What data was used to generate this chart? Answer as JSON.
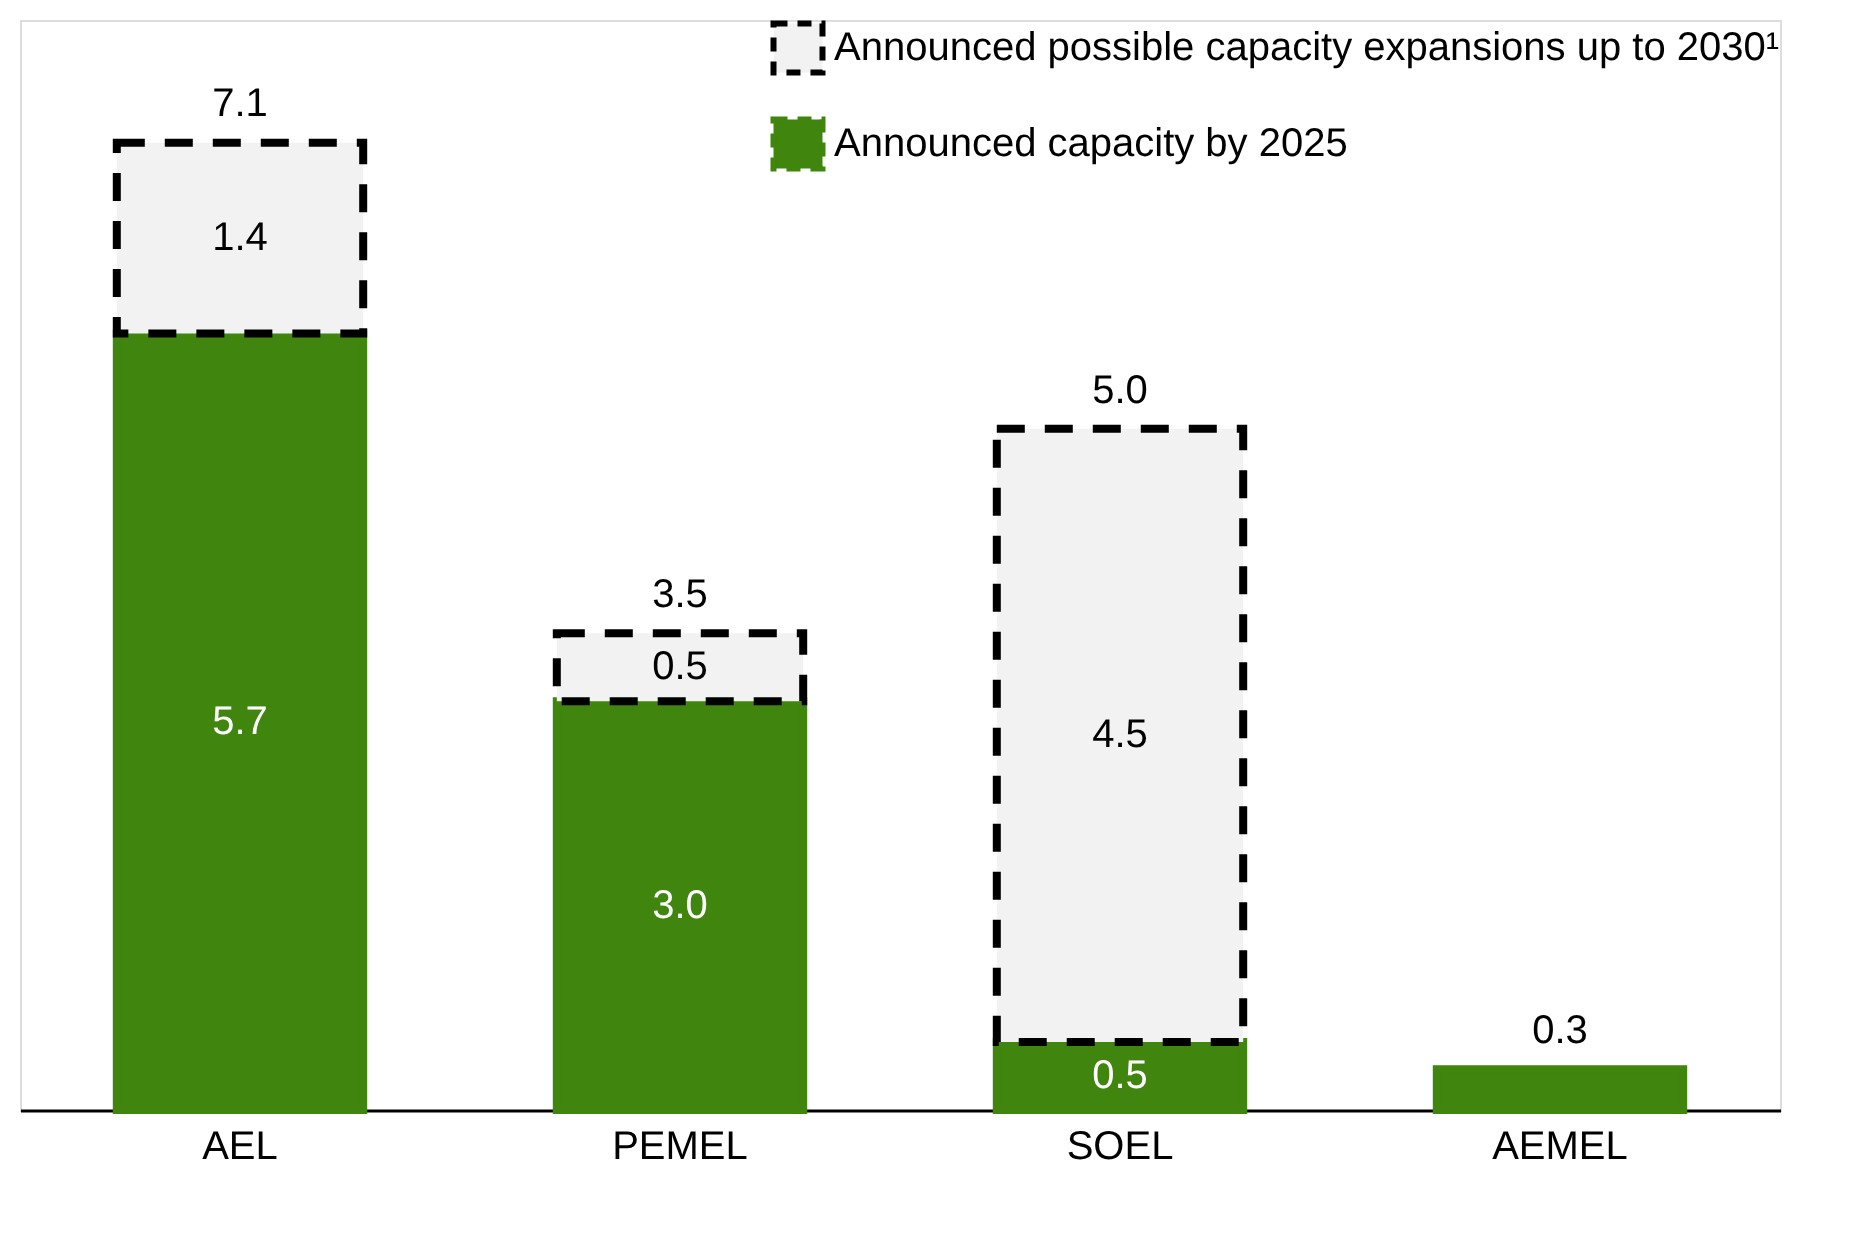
{
  "chart_data": {
    "type": "bar",
    "stacked": true,
    "categories": [
      "AEL",
      "PEMEL",
      "SOEL",
      "AEMEL"
    ],
    "series": [
      {
        "name": "Announced capacity by 2025",
        "color": "#3f850e",
        "values": [
          5.7,
          3.0,
          0.5,
          0.3
        ],
        "value_labels": [
          "5.7",
          "3.0",
          "0.5",
          "0.3"
        ]
      },
      {
        "name": "Announced possible capacity expansions up to 2030¹",
        "color": "#f2f2f2",
        "line_style": "dashed",
        "values": [
          1.4,
          0.5,
          4.5,
          null
        ],
        "value_labels": [
          "1.4",
          "0.5",
          "4.5",
          null
        ]
      }
    ],
    "totals": [
      "7.1",
      "3.5",
      "5.0",
      null
    ],
    "ylim": [
      0,
      8
    ],
    "tick_labels": "x",
    "grid": false,
    "legend": "top right"
  }
}
